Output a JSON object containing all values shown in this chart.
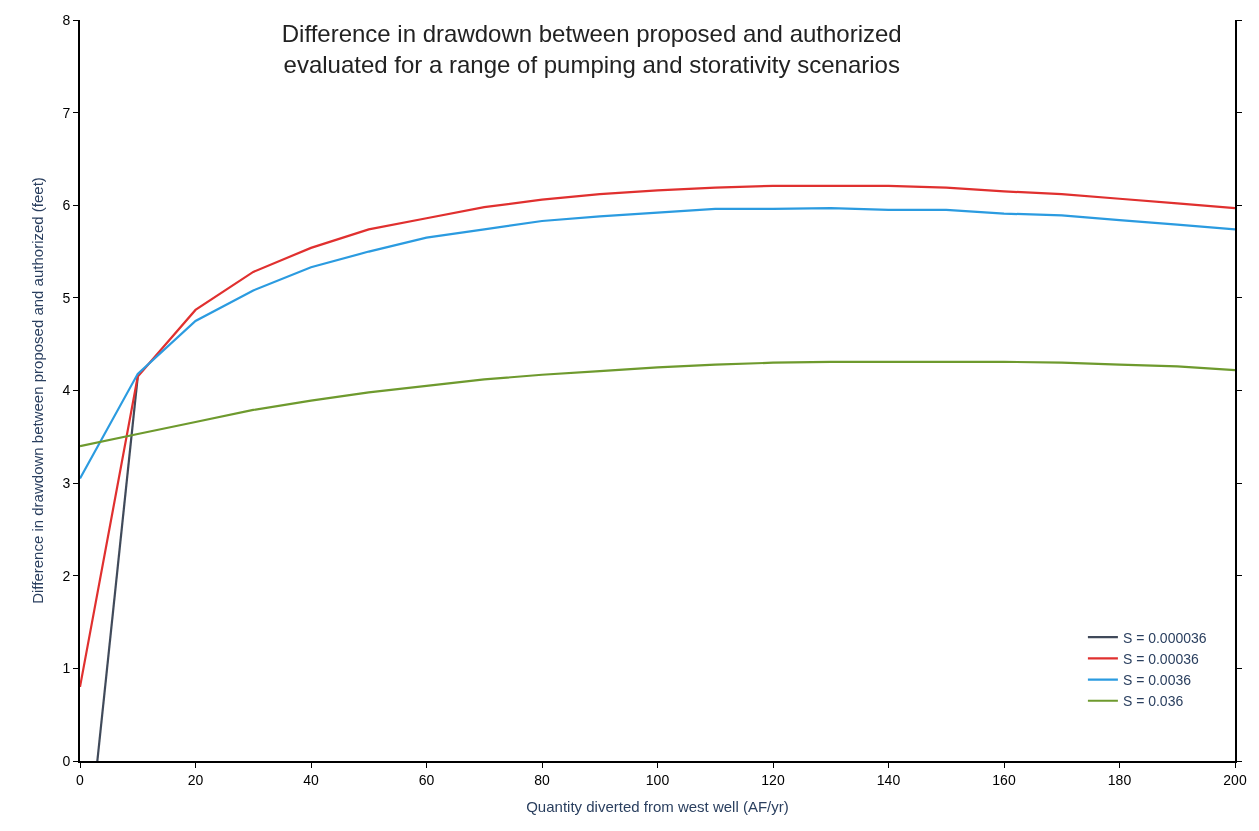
{
  "chart_data": {
    "type": "line",
    "title": "Difference in drawdown between proposed and authorized\nevaluated for a range of pumping and storativity scenarios",
    "xlabel": "Quantity diverted from west well (AF/yr)",
    "ylabel": "Difference in drawdown between proposed and authorized (feet)",
    "x": [
      0,
      10,
      20,
      30,
      40,
      50,
      60,
      70,
      80,
      90,
      100,
      110,
      120,
      130,
      140,
      150,
      160,
      170,
      180,
      190,
      200
    ],
    "series": [
      {
        "name": "S = 0.000036",
        "color": "#404a5a",
        "x": [
          3,
          10
        ],
        "values": [
          0,
          4.15
        ]
      },
      {
        "name": "S = 0.00036",
        "color": "#e0302f",
        "values": [
          0.8,
          4.15,
          4.87,
          5.28,
          5.54,
          5.74,
          5.86,
          5.98,
          6.06,
          6.12,
          6.16,
          6.19,
          6.21,
          6.21,
          6.21,
          6.19,
          6.15,
          6.12,
          6.07,
          6.02,
          5.97
        ]
      },
      {
        "name": "S = 0.0036",
        "color": "#2b9be0",
        "values": [
          3.05,
          4.18,
          4.75,
          5.08,
          5.33,
          5.5,
          5.65,
          5.74,
          5.83,
          5.88,
          5.92,
          5.96,
          5.96,
          5.97,
          5.95,
          5.95,
          5.91,
          5.89,
          5.84,
          5.79,
          5.74
        ]
      },
      {
        "name": "S = 0.036",
        "color": "#6e9a2e",
        "values": [
          3.4,
          3.53,
          3.66,
          3.79,
          3.89,
          3.98,
          4.05,
          4.12,
          4.17,
          4.21,
          4.25,
          4.28,
          4.3,
          4.31,
          4.31,
          4.31,
          4.31,
          4.3,
          4.28,
          4.26,
          4.22
        ]
      }
    ],
    "xlim": [
      0,
      200
    ],
    "xticks": [
      0,
      20,
      40,
      60,
      80,
      100,
      120,
      140,
      160,
      180,
      200
    ],
    "ylim": [
      0,
      8
    ],
    "yticks": [
      0,
      1,
      2,
      3,
      4,
      5,
      6,
      7,
      8
    ],
    "grid": false,
    "legend": "bottom right",
    "marker": "none",
    "line_style": "solid"
  }
}
